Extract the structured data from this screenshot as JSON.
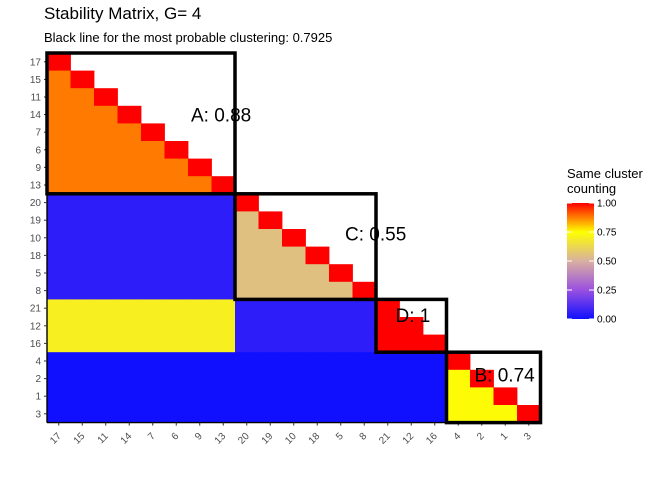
{
  "title": "Stability Matrix, G= 4",
  "subtitle": "Black line for the most probable clustering:  0.7925",
  "chart_data": {
    "type": "heatmap",
    "title": "Stability Matrix, G= 4",
    "subtitle": "Black line for the most probable clustering:  0.7925",
    "axis_labels": [
      "17",
      "15",
      "11",
      "14",
      "7",
      "6",
      "9",
      "13",
      "20",
      "19",
      "10",
      "18",
      "5",
      "8",
      "21",
      "12",
      "16",
      "4",
      "2",
      "1",
      "3"
    ],
    "triangle": "lower-left",
    "value_range": [
      0,
      1
    ],
    "colorscale": [
      {
        "value": 0.0,
        "color": "#1010ff"
      },
      {
        "value": 0.25,
        "color": "#9a50e0"
      },
      {
        "value": 0.5,
        "color": "#d8b0a0"
      },
      {
        "value": 0.75,
        "color": "#ffff00"
      },
      {
        "value": 1.0,
        "color": "#ff0000"
      }
    ],
    "block_value_matrix_order": [
      "A",
      "C",
      "D",
      "B"
    ],
    "block_values": [
      [
        null,
        null,
        null,
        null
      ],
      [
        0.05,
        null,
        null,
        null
      ],
      [
        0.7,
        0.05,
        null,
        null
      ],
      [
        0.0,
        0.0,
        0.0,
        null
      ]
    ],
    "clusters": [
      {
        "name": "A",
        "stability": "0.88",
        "members": [
          "17",
          "15",
          "11",
          "14",
          "7",
          "6",
          "9",
          "13"
        ]
      },
      {
        "name": "C",
        "stability": "0.55",
        "members": [
          "20",
          "19",
          "10",
          "18",
          "5",
          "8"
        ]
      },
      {
        "name": "D",
        "stability": "1",
        "members": [
          "21",
          "12",
          "16"
        ]
      },
      {
        "name": "B",
        "stability": "0.74",
        "members": [
          "4",
          "2",
          "1",
          "3"
        ]
      }
    ],
    "legend": {
      "title_lines": [
        "Same cluster",
        "counting"
      ],
      "ticks": [
        "1.00",
        "0.75",
        "0.50",
        "0.25",
        "0.00"
      ],
      "tick_values": [
        1.0,
        0.75,
        0.5,
        0.25,
        0.0
      ],
      "placement": "right"
    },
    "grid": false
  }
}
